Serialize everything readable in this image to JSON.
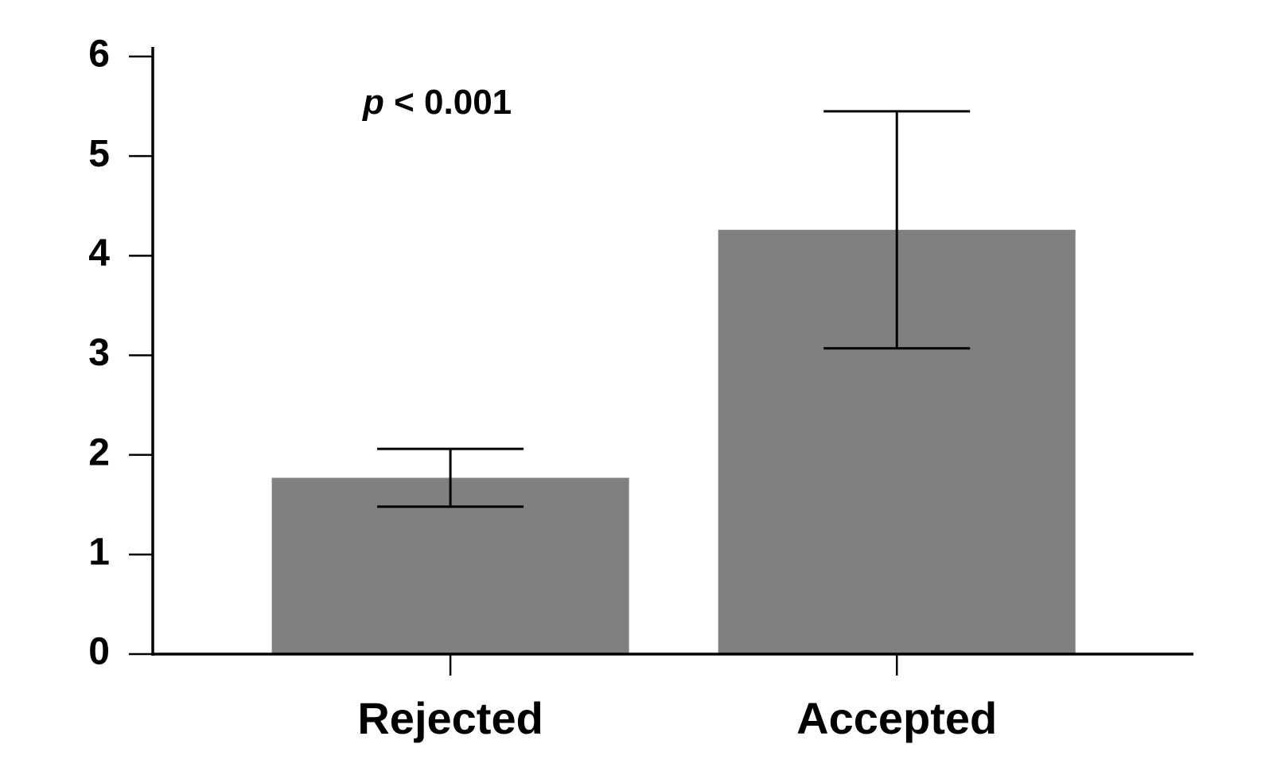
{
  "chart_data": {
    "type": "bar",
    "annotation": "p < 0.001",
    "categories": [
      "Rejected",
      "Accepted"
    ],
    "values": [
      1.77,
      4.26
    ],
    "errors": [
      0.29,
      1.19
    ],
    "color": "#808080",
    "ylim": [
      0,
      6
    ],
    "yticks": [
      0,
      1,
      2,
      3,
      4,
      5,
      6
    ],
    "grid": false
  }
}
